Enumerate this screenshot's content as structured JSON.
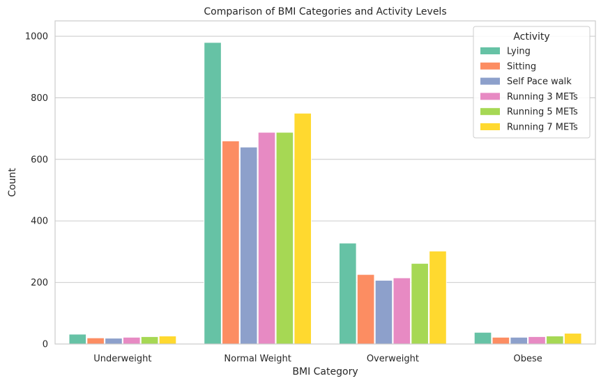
{
  "chart_data": {
    "type": "bar",
    "title": "Comparison of BMI Categories and Activity Levels",
    "xlabel": "BMI Category",
    "ylabel": "Count",
    "ylim": [
      0,
      1050
    ],
    "yticks": [
      0,
      200,
      400,
      600,
      800,
      1000
    ],
    "grid": "horizontal",
    "legend": {
      "title": "Activity",
      "placement": "top-right"
    },
    "categories": [
      "Underweight",
      "Normal Weight",
      "Overweight",
      "Obese"
    ],
    "series": [
      {
        "name": "Lying",
        "color": "#66c2a5",
        "values": [
          32,
          980,
          328,
          38
        ]
      },
      {
        "name": "Sitting",
        "color": "#fc8d62",
        "values": [
          20,
          660,
          226,
          22
        ]
      },
      {
        "name": "Self Pace walk",
        "color": "#8da0cb",
        "values": [
          19,
          640,
          207,
          22
        ]
      },
      {
        "name": "Running 3 METs",
        "color": "#e78ac3",
        "values": [
          22,
          688,
          215,
          24
        ]
      },
      {
        "name": "Running 5 METs",
        "color": "#a6d854",
        "values": [
          24,
          688,
          262,
          26
        ]
      },
      {
        "name": "Running 7 METs",
        "color": "#ffd92f",
        "values": [
          26,
          750,
          302,
          35
        ]
      }
    ]
  }
}
